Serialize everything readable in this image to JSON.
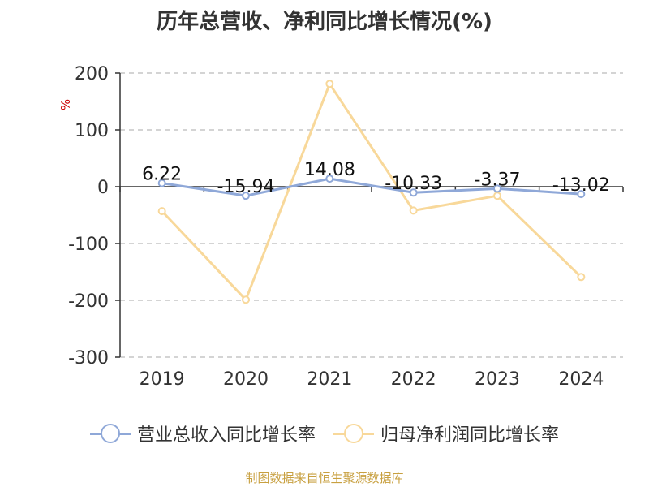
{
  "chart_data": {
    "type": "line",
    "title": "历年总营收、净利同比增长情况(%)",
    "ylabel": "%",
    "categories": [
      "2019",
      "2020",
      "2021",
      "2022",
      "2023",
      "2024"
    ],
    "yticks": [
      "200",
      "100",
      "0",
      "-100",
      "-200",
      "-300"
    ],
    "ylim": [
      -300,
      200
    ],
    "grid": true,
    "legend_position": "bottom",
    "series": [
      {
        "name": "营业总收入同比增长率",
        "color": "#8fa8d8",
        "values": [
          6.22,
          -15.94,
          14.08,
          -10.33,
          -3.37,
          -13.02
        ],
        "labels": [
          "6.22",
          "-15.94",
          "14.08",
          "-10.33",
          "-3.37",
          "-13.02"
        ]
      },
      {
        "name": "归母净利润同比增长率",
        "color": "#f8d89a",
        "values": [
          -43,
          -199,
          181,
          -42,
          -16,
          -159
        ]
      }
    ]
  },
  "source": "制图数据来自恒生聚源数据库"
}
